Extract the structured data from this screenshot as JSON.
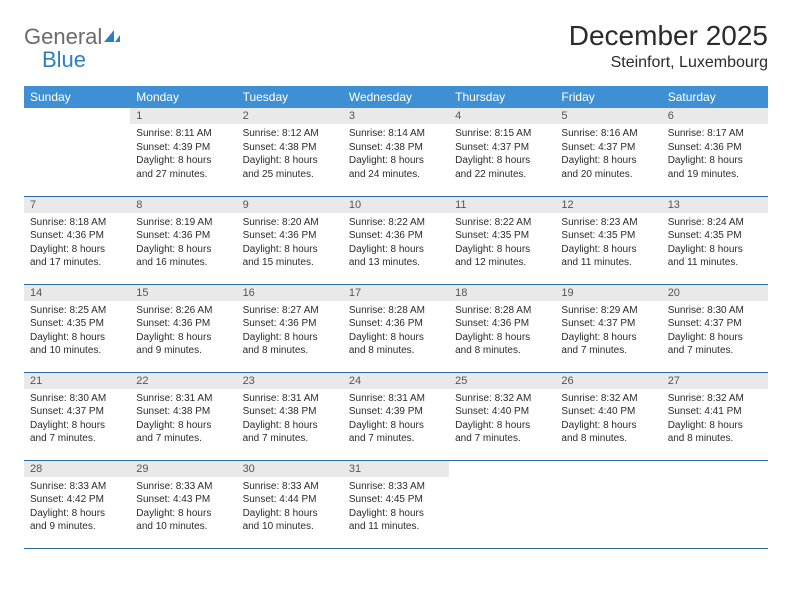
{
  "logo": {
    "general": "General",
    "blue": "Blue"
  },
  "title": "December 2025",
  "location": "Steinfort, Luxembourg",
  "colors": {
    "header_bg": "#3f8fd4",
    "header_text": "#ffffff",
    "daynum_bg": "#e9e9e9",
    "daynum_text": "#555555",
    "cell_border": "#2d6aa3",
    "body_text": "#2b2b2b",
    "logo_gray": "#6b6b6b",
    "logo_blue": "#2d7fc4"
  },
  "day_names": [
    "Sunday",
    "Monday",
    "Tuesday",
    "Wednesday",
    "Thursday",
    "Friday",
    "Saturday"
  ],
  "first_day_column": 1,
  "days": [
    {
      "n": 1,
      "sunrise": "8:11 AM",
      "sunset": "4:39 PM",
      "daylight": "8 hours and 27 minutes."
    },
    {
      "n": 2,
      "sunrise": "8:12 AM",
      "sunset": "4:38 PM",
      "daylight": "8 hours and 25 minutes."
    },
    {
      "n": 3,
      "sunrise": "8:14 AM",
      "sunset": "4:38 PM",
      "daylight": "8 hours and 24 minutes."
    },
    {
      "n": 4,
      "sunrise": "8:15 AM",
      "sunset": "4:37 PM",
      "daylight": "8 hours and 22 minutes."
    },
    {
      "n": 5,
      "sunrise": "8:16 AM",
      "sunset": "4:37 PM",
      "daylight": "8 hours and 20 minutes."
    },
    {
      "n": 6,
      "sunrise": "8:17 AM",
      "sunset": "4:36 PM",
      "daylight": "8 hours and 19 minutes."
    },
    {
      "n": 7,
      "sunrise": "8:18 AM",
      "sunset": "4:36 PM",
      "daylight": "8 hours and 17 minutes."
    },
    {
      "n": 8,
      "sunrise": "8:19 AM",
      "sunset": "4:36 PM",
      "daylight": "8 hours and 16 minutes."
    },
    {
      "n": 9,
      "sunrise": "8:20 AM",
      "sunset": "4:36 PM",
      "daylight": "8 hours and 15 minutes."
    },
    {
      "n": 10,
      "sunrise": "8:22 AM",
      "sunset": "4:36 PM",
      "daylight": "8 hours and 13 minutes."
    },
    {
      "n": 11,
      "sunrise": "8:22 AM",
      "sunset": "4:35 PM",
      "daylight": "8 hours and 12 minutes."
    },
    {
      "n": 12,
      "sunrise": "8:23 AM",
      "sunset": "4:35 PM",
      "daylight": "8 hours and 11 minutes."
    },
    {
      "n": 13,
      "sunrise": "8:24 AM",
      "sunset": "4:35 PM",
      "daylight": "8 hours and 11 minutes."
    },
    {
      "n": 14,
      "sunrise": "8:25 AM",
      "sunset": "4:35 PM",
      "daylight": "8 hours and 10 minutes."
    },
    {
      "n": 15,
      "sunrise": "8:26 AM",
      "sunset": "4:36 PM",
      "daylight": "8 hours and 9 minutes."
    },
    {
      "n": 16,
      "sunrise": "8:27 AM",
      "sunset": "4:36 PM",
      "daylight": "8 hours and 8 minutes."
    },
    {
      "n": 17,
      "sunrise": "8:28 AM",
      "sunset": "4:36 PM",
      "daylight": "8 hours and 8 minutes."
    },
    {
      "n": 18,
      "sunrise": "8:28 AM",
      "sunset": "4:36 PM",
      "daylight": "8 hours and 8 minutes."
    },
    {
      "n": 19,
      "sunrise": "8:29 AM",
      "sunset": "4:37 PM",
      "daylight": "8 hours and 7 minutes."
    },
    {
      "n": 20,
      "sunrise": "8:30 AM",
      "sunset": "4:37 PM",
      "daylight": "8 hours and 7 minutes."
    },
    {
      "n": 21,
      "sunrise": "8:30 AM",
      "sunset": "4:37 PM",
      "daylight": "8 hours and 7 minutes."
    },
    {
      "n": 22,
      "sunrise": "8:31 AM",
      "sunset": "4:38 PM",
      "daylight": "8 hours and 7 minutes."
    },
    {
      "n": 23,
      "sunrise": "8:31 AM",
      "sunset": "4:38 PM",
      "daylight": "8 hours and 7 minutes."
    },
    {
      "n": 24,
      "sunrise": "8:31 AM",
      "sunset": "4:39 PM",
      "daylight": "8 hours and 7 minutes."
    },
    {
      "n": 25,
      "sunrise": "8:32 AM",
      "sunset": "4:40 PM",
      "daylight": "8 hours and 7 minutes."
    },
    {
      "n": 26,
      "sunrise": "8:32 AM",
      "sunset": "4:40 PM",
      "daylight": "8 hours and 8 minutes."
    },
    {
      "n": 27,
      "sunrise": "8:32 AM",
      "sunset": "4:41 PM",
      "daylight": "8 hours and 8 minutes."
    },
    {
      "n": 28,
      "sunrise": "8:33 AM",
      "sunset": "4:42 PM",
      "daylight": "8 hours and 9 minutes."
    },
    {
      "n": 29,
      "sunrise": "8:33 AM",
      "sunset": "4:43 PM",
      "daylight": "8 hours and 10 minutes."
    },
    {
      "n": 30,
      "sunrise": "8:33 AM",
      "sunset": "4:44 PM",
      "daylight": "8 hours and 10 minutes."
    },
    {
      "n": 31,
      "sunrise": "8:33 AM",
      "sunset": "4:45 PM",
      "daylight": "8 hours and 11 minutes."
    }
  ],
  "labels": {
    "sunrise": "Sunrise:",
    "sunset": "Sunset:",
    "daylight": "Daylight:"
  }
}
